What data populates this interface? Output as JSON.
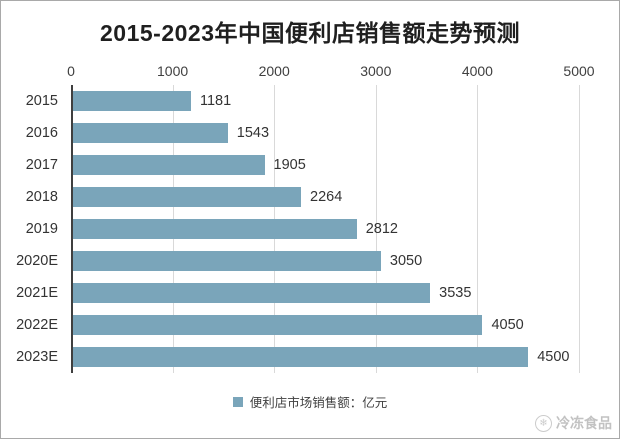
{
  "page": {
    "background": "#ffffff",
    "border_color": "#a9a9a9"
  },
  "chart_data": {
    "type": "bar",
    "orientation": "horizontal",
    "title": "2015-2023年中国便利店销售额走势预测",
    "categories": [
      "2015",
      "2016",
      "2017",
      "2018",
      "2019",
      "2020E",
      "2021E",
      "2022E",
      "2023E"
    ],
    "values": [
      1181,
      1543,
      1905,
      2264,
      2812,
      3050,
      3535,
      4050,
      4500
    ],
    "x_ticks": [
      0,
      1000,
      2000,
      3000,
      4000,
      5000
    ],
    "xlim": [
      0,
      5000
    ],
    "axis_position": "top",
    "grid": true,
    "legend": {
      "label": "便利店市场销售额：亿元",
      "position": "bottom-center",
      "marker": "square"
    },
    "colors": {
      "bar": "#7AA5BA",
      "axis_line": "#3F3F3F",
      "gridline": "#D9D9D9",
      "text": "#404040",
      "title": "#1F1F1F"
    }
  },
  "watermark": {
    "icon": "snowflake-circle-icon",
    "icon_glyph": "❄",
    "text": "冷冻食品",
    "color": "#C2C2C2"
  }
}
